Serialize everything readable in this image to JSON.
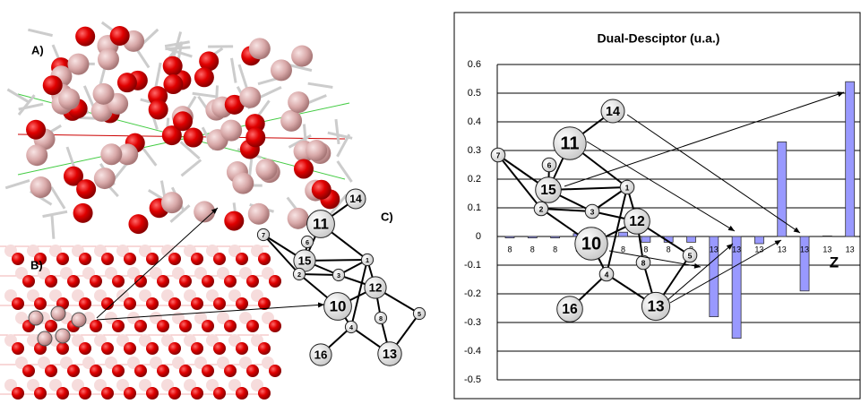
{
  "chart_data": {
    "type": "bar",
    "title": "Dual-Desciptor (u.a.)",
    "categories": [
      "8",
      "8",
      "8",
      "8",
      "8",
      "8",
      "8",
      "8",
      "8",
      "13",
      "13",
      "13",
      "13",
      "13",
      "13",
      "13"
    ],
    "values": [
      -0.005,
      -0.005,
      -0.005,
      0.01,
      0.01,
      0.015,
      -0.02,
      -0.02,
      -0.02,
      -0.28,
      -0.355,
      -0.025,
      0.33,
      -0.19,
      0.002,
      0.54
    ],
    "color": "#9999ff",
    "ylim": [
      -0.5,
      0.6
    ],
    "yticks": [
      -0.5,
      -0.4,
      -0.3,
      -0.2,
      -0.1,
      0,
      0.1,
      0.2,
      0.3,
      0.4,
      0.5,
      0.6
    ],
    "grid": true,
    "annotation": "Z"
  },
  "panels": {
    "labels": [
      "A)",
      "B)",
      "C)"
    ]
  },
  "graph_c": {
    "nodes": [
      "14",
      "11",
      "7",
      "6",
      "15",
      "2",
      "3",
      "1",
      "12",
      "10",
      "4",
      "8",
      "5",
      "13",
      "16"
    ]
  },
  "graph_overlay": {
    "nodes": [
      "14",
      "11",
      "7",
      "6",
      "15",
      "2",
      "3",
      "1",
      "12",
      "10",
      "4",
      "8",
      "5",
      "13",
      "16"
    ]
  }
}
